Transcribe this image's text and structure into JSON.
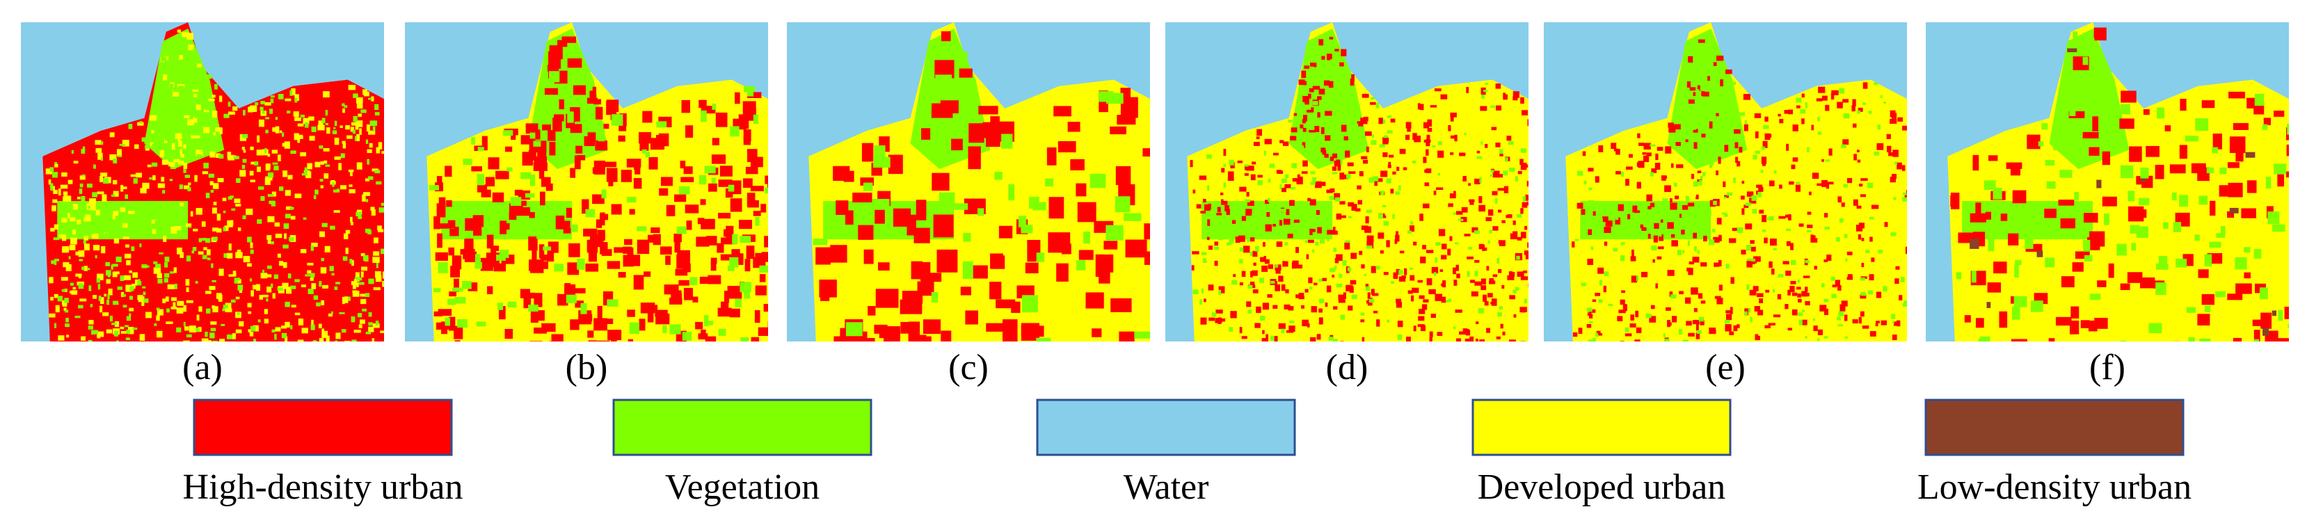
{
  "panels": [
    {
      "label": "(a)"
    },
    {
      "label": "(b)"
    },
    {
      "label": "(c)"
    },
    {
      "label": "(d)"
    },
    {
      "label": "(e)"
    },
    {
      "label": "(f)"
    }
  ],
  "legend": [
    {
      "label": "High-density urban",
      "color": "#ff0000"
    },
    {
      "label": "Vegetation",
      "color": "#80ff00"
    },
    {
      "label": "Water",
      "color": "#87ceeb"
    },
    {
      "label": "Developed urban",
      "color": "#ffff00"
    },
    {
      "label": "Low-density urban",
      "color": "#8b4028"
    }
  ]
}
